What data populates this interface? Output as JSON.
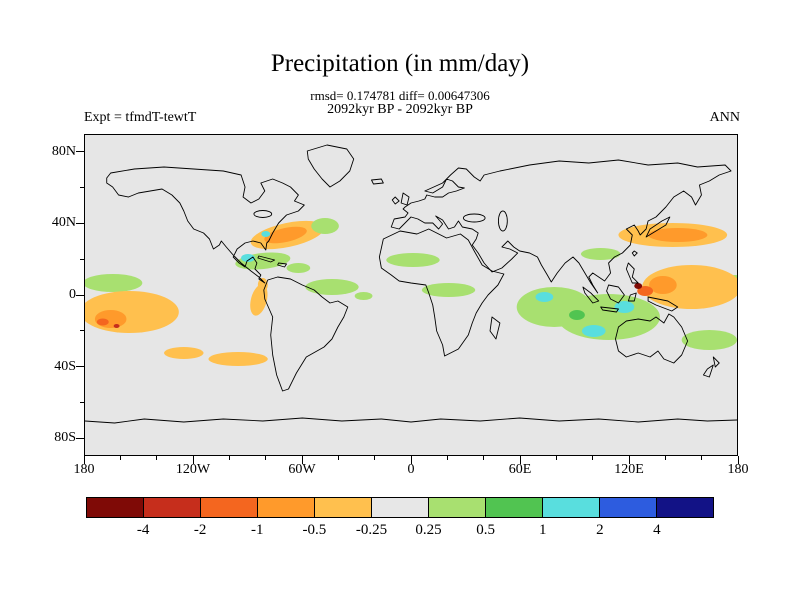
{
  "title": "Precipitation (in mm/day)",
  "stats_line": "rmsd= 0.174781 diff= 0.00647306",
  "period_line": "2092kyr BP - 2092kyr BP",
  "expt_label": "Expt = tfmdT-tewtT",
  "season_label": "ANN",
  "axes": {
    "y_ticks": [
      "80N",
      "40N",
      "0",
      "40S",
      "80S"
    ],
    "x_ticks": [
      "180",
      "120W",
      "60W",
      "0",
      "60E",
      "120E",
      "180"
    ]
  },
  "colorbar": {
    "labels": [
      "-4",
      "-2",
      "-1",
      "-0.5",
      "-0.25",
      "0.25",
      "0.5",
      "1",
      "2",
      "4"
    ],
    "colors": [
      "#7f0a06",
      "#c62e1c",
      "#f4661f",
      "#ff9a2b",
      "#ffc04e",
      "#e7e7e7",
      "#a8e070",
      "#51c451",
      "#59dede",
      "#2d5cdf",
      "#121286"
    ]
  },
  "chart_data": {
    "type": "heatmap",
    "subtype": "filled-contour-world-map",
    "title": "Precipitation (in mm/day)",
    "subtitle": "2092kyr BP - 2092kyr BP",
    "stats": {
      "rmsd": 0.174781,
      "diff": 0.00647306
    },
    "experiment": "tfmdT-tewtT",
    "season": "ANN",
    "units": "mm/day",
    "projection": "equirectangular",
    "lon_range": [
      -180,
      180
    ],
    "lat_range": [
      -90,
      90
    ],
    "lon_tick_interval_deg": 60,
    "lat_tick_interval_deg": 40,
    "contour_levels": [
      -4,
      -2,
      -1,
      -0.5,
      -0.25,
      0.25,
      0.5,
      1,
      2,
      4
    ],
    "map_background": "#e6e6e6",
    "coastline_color": "#000000",
    "legend_position": "bottom",
    "anomaly_regions": [
      {
        "name": "eastern-equatorial-pacific",
        "lon": [
          -180,
          -115
        ],
        "lat": [
          -14,
          2
        ],
        "value_range": [
          -2,
          -0.25
        ]
      },
      {
        "name": "eastern-pacific-north-of-equator",
        "lon": [
          -180,
          -145
        ],
        "lat": [
          2,
          9
        ],
        "value_range": [
          0.25,
          0.5
        ]
      },
      {
        "name": "south-pacific-streaks",
        "lon": [
          -135,
          -80
        ],
        "lat": [
          -32,
          -20
        ],
        "value_range": [
          -0.5,
          -0.25
        ]
      },
      {
        "name": "us-east-coast-gulf-stream",
        "lon": [
          -85,
          -45
        ],
        "lat": [
          25,
          38
        ],
        "value_range": [
          -1,
          -0.25
        ]
      },
      {
        "name": "northwest-atlantic-fringe",
        "lon": [
          -55,
          -38
        ],
        "lat": [
          32,
          42
        ],
        "value_range": [
          0.25,
          0.5
        ]
      },
      {
        "name": "caribbean-west-atlantic",
        "lon": [
          -78,
          -38
        ],
        "lat": [
          14,
          23
        ],
        "value_range": [
          0.25,
          2
        ]
      },
      {
        "name": "peru-ecuador-coast",
        "lon": [
          -84,
          -72
        ],
        "lat": [
          -14,
          4
        ],
        "value_range": [
          -1,
          -0.25
        ]
      },
      {
        "name": "equatorial-atlantic",
        "lon": [
          -58,
          -20
        ],
        "lat": [
          -6,
          5
        ],
        "value_range": [
          0.25,
          0.5
        ]
      },
      {
        "name": "subtropical-north-atlantic",
        "lon": [
          -35,
          -5
        ],
        "lat": [
          24,
          34
        ],
        "value_range": [
          0.25,
          0.5
        ]
      },
      {
        "name": "equatorial-africa-gulf-of-guinea",
        "lon": [
          -15,
          18
        ],
        "lat": [
          -6,
          4
        ],
        "value_range": [
          0.25,
          0.5
        ]
      },
      {
        "name": "central-indian-ocean",
        "lon": [
          62,
          105
        ],
        "lat": [
          -22,
          6
        ],
        "value_range": [
          0.25,
          2
        ]
      },
      {
        "name": "maritime-continent",
        "lon": [
          95,
          140
        ],
        "lat": [
          -16,
          6
        ],
        "value_range": [
          0.25,
          2
        ]
      },
      {
        "name": "west-pacific-philippines",
        "lon": [
          120,
          180
        ],
        "lat": [
          -10,
          12
        ],
        "value_range": [
          -4,
          -0.25
        ]
      },
      {
        "name": "northwest-pacific-kuroshio",
        "lon": [
          112,
          180
        ],
        "lat": [
          24,
          40
        ],
        "value_range": [
          -1,
          -0.25
        ]
      },
      {
        "name": "east-china-sea",
        "lon": [
          100,
          125
        ],
        "lat": [
          18,
          28
        ],
        "value_range": [
          0.25,
          0.5
        ]
      },
      {
        "name": "southwest-pacific",
        "lon": [
          152,
          180
        ],
        "lat": [
          -36,
          -20
        ],
        "value_range": [
          0.25,
          0.5
        ]
      }
    ]
  }
}
